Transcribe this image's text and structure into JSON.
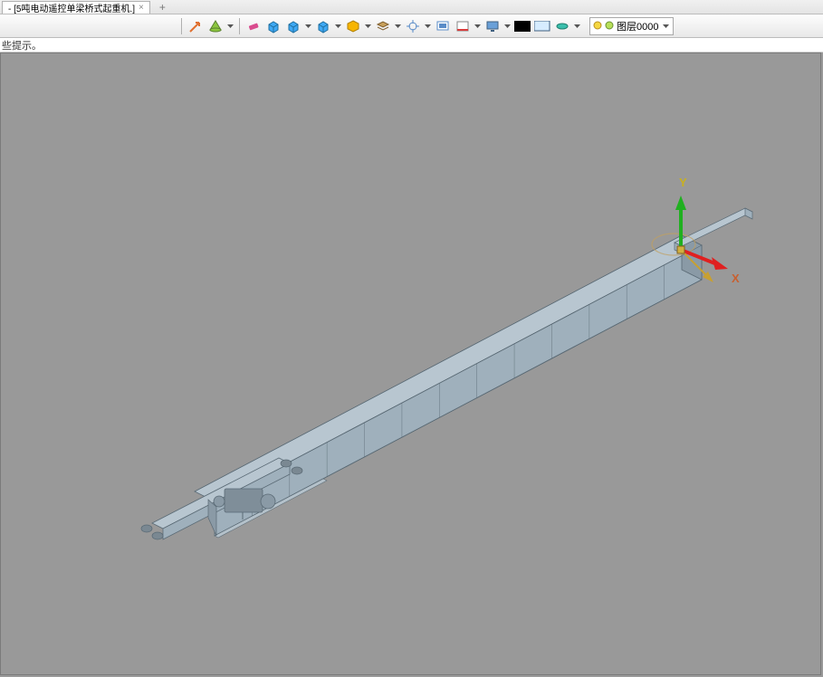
{
  "tab": {
    "title": "- [5吨电动遥控单梁桥式起重机.]",
    "close": "×",
    "add": "+"
  },
  "hint": "些提示。",
  "toolbar": {
    "icons": [
      {
        "name": "separator"
      },
      {
        "name": "measure-icon",
        "color": "#e07030",
        "type": "arrow-diag"
      },
      {
        "name": "material-icon",
        "color": "#8cc63f",
        "type": "cone",
        "dd": true
      },
      {
        "name": "separator"
      },
      {
        "name": "eraser-icon",
        "color": "#d94c8e",
        "type": "eraser"
      },
      {
        "name": "box1-icon",
        "color": "#3fa9f5",
        "type": "cube"
      },
      {
        "name": "box2-icon",
        "color": "#3fa9f5",
        "type": "cube",
        "dd": true
      },
      {
        "name": "box3-icon",
        "color": "#3fa9f5",
        "type": "cube",
        "dd": true
      },
      {
        "name": "poly-icon",
        "color": "#f7b500",
        "type": "hex",
        "dd": true
      },
      {
        "name": "layer-icon",
        "color": "#c8a05a",
        "type": "layers",
        "dd": true
      },
      {
        "name": "target-icon",
        "color": "#5a8cc8",
        "type": "crosshair",
        "dd": true
      },
      {
        "name": "screen-icon",
        "color": "#5a8cc8",
        "type": "screen"
      },
      {
        "name": "redline-icon",
        "color": "#d93c3c",
        "type": "redline",
        "dd": true
      },
      {
        "name": "monitor-icon",
        "color": "#6aa0d8",
        "type": "monitor",
        "dd": true
      },
      {
        "name": "black-swatch",
        "color": "#000000",
        "type": "swatch"
      },
      {
        "name": "white-swatch",
        "color": "#d6ecff",
        "type": "swatch-outline"
      },
      {
        "name": "disc-icon",
        "color": "#3bbfad",
        "type": "disc",
        "dd": true
      }
    ],
    "layer": {
      "bulb1": "#f5d742",
      "bulb2": "#b8e05a",
      "label": "图层0000"
    }
  },
  "axes": {
    "x_label": "X",
    "y_label": "Y",
    "x_color": "#e02020",
    "y_color": "#20b020",
    "z_color": "#c8a030"
  },
  "model": {
    "beam_fill": "#9fb0bc",
    "beam_edge": "#5a6a75",
    "beam_top": "#b8c6d0",
    "end_fill": "#8a9aa6",
    "triad_origin": [
      753,
      245
    ]
  }
}
